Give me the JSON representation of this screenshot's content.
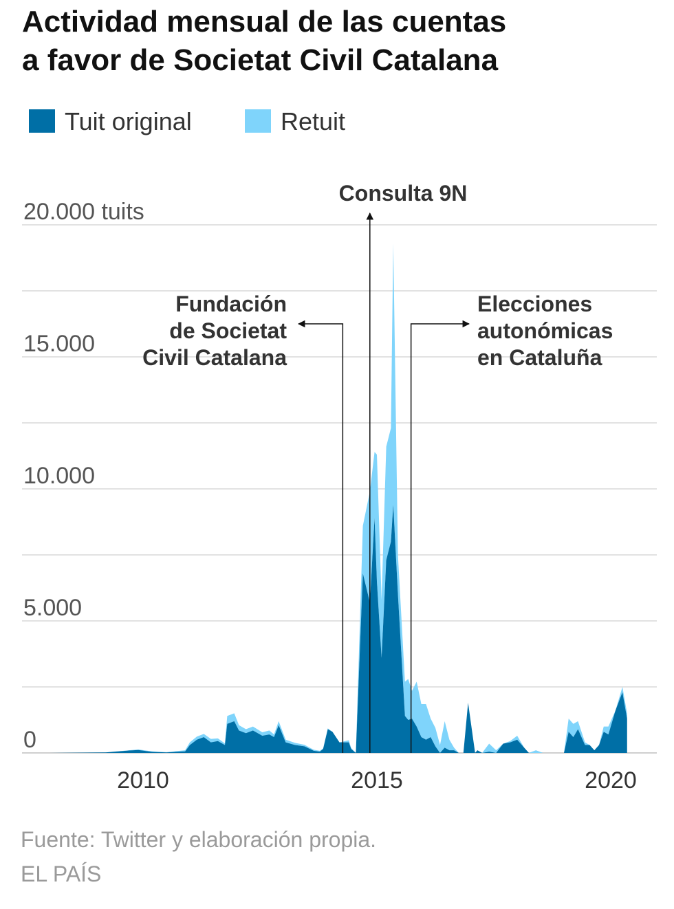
{
  "title": "Actividad mensual de las cuentas\na favor de Societat Civil Catalana",
  "legend": [
    {
      "label": "Tuit original",
      "color": "#006fa6"
    },
    {
      "label": "Retuit",
      "color": "#7fd4fb"
    }
  ],
  "source": "Fuente: Twitter y elaboración propia.",
  "credit": "EL PAÍS",
  "chart_data": {
    "type": "area",
    "stacked": true,
    "ylim": [
      0,
      20000
    ],
    "xlim": [
      2008.0,
      2021.0
    ],
    "grid": true,
    "y_ticks": [
      {
        "value": 0,
        "label": "0"
      },
      {
        "value": 5000,
        "label": "5.000"
      },
      {
        "value": 10000,
        "label": "10.000"
      },
      {
        "value": 15000,
        "label": "15.000"
      },
      {
        "value": 20000,
        "label": "20.000 tuits"
      }
    ],
    "x_ticks": [
      {
        "value": 2010,
        "label": "2010"
      },
      {
        "value": 2015,
        "label": "2015"
      },
      {
        "value": 2020,
        "label": "2020"
      }
    ],
    "annotations": [
      {
        "text": "Consulta 9N",
        "x": 2014.85
      },
      {
        "text": "Fundación\nde Societat\nCivil Catalana",
        "x": 2014.27
      },
      {
        "text": "Elecciones\nautonómicas\nen Cataluña",
        "x": 2015.73
      }
    ],
    "x": [
      2008.0,
      2009.2,
      2009.7,
      2009.9,
      2010.2,
      2010.5,
      2010.9,
      2011.0,
      2011.15,
      2011.3,
      2011.45,
      2011.6,
      2011.75,
      2011.8,
      2011.95,
      2012.05,
      2012.2,
      2012.35,
      2012.55,
      2012.7,
      2012.8,
      2012.9,
      2013.05,
      2013.25,
      2013.45,
      2013.65,
      2013.78,
      2013.85,
      2013.95,
      2014.05,
      2014.2,
      2014.4,
      2014.45,
      2014.55,
      2014.7,
      2014.85,
      2014.95,
      2015.0,
      2015.1,
      2015.2,
      2015.3,
      2015.35,
      2015.45,
      2015.6,
      2015.67,
      2015.75,
      2015.85,
      2015.95,
      2016.05,
      2016.15,
      2016.25,
      2016.35,
      2016.45,
      2016.55,
      2016.65,
      2016.75,
      2016.85,
      2016.95,
      2017.1,
      2017.15,
      2017.25,
      2017.4,
      2017.55,
      2017.7,
      2017.85,
      2018.0,
      2018.15,
      2018.25,
      2018.4,
      2018.55,
      2018.7,
      2018.85,
      2019.0,
      2019.1,
      2019.2,
      2019.3,
      2019.45,
      2019.55,
      2019.65,
      2019.75,
      2019.85,
      2019.95,
      2020.1,
      2020.25,
      2020.35
    ],
    "series": [
      {
        "name": "Tuit original",
        "values": [
          0,
          20,
          90,
          110,
          40,
          20,
          60,
          300,
          500,
          600,
          400,
          450,
          300,
          1100,
          1200,
          850,
          750,
          850,
          650,
          700,
          600,
          1050,
          400,
          300,
          250,
          80,
          50,
          150,
          900,
          800,
          400,
          400,
          150,
          0,
          6800,
          5700,
          8900,
          6500,
          3600,
          7300,
          8000,
          9400,
          6000,
          1400,
          1250,
          1300,
          1000,
          600,
          500,
          600,
          250,
          0,
          200,
          100,
          100,
          0,
          0,
          1900,
          0,
          100,
          0,
          50,
          0,
          350,
          400,
          500,
          200,
          0,
          0,
          0,
          0,
          0,
          0,
          800,
          600,
          900,
          300,
          300,
          100,
          300,
          800,
          700,
          1600,
          2300,
          1300
        ]
      },
      {
        "name": "Retuit",
        "values": [
          0,
          0,
          10,
          20,
          20,
          10,
          40,
          100,
          120,
          120,
          130,
          100,
          60,
          300,
          300,
          200,
          150,
          150,
          130,
          150,
          100,
          150,
          100,
          80,
          60,
          40,
          30,
          20,
          30,
          0,
          0,
          80,
          40,
          0,
          1800,
          4200,
          2500,
          4800,
          2200,
          4300,
          4300,
          9900,
          1500,
          1300,
          1550,
          1050,
          1700,
          1250,
          1350,
          700,
          700,
          300,
          1000,
          400,
          100,
          0,
          0,
          0,
          0,
          0,
          0,
          300,
          100,
          0,
          50,
          150,
          0,
          0,
          100,
          0,
          0,
          0,
          0,
          500,
          500,
          300,
          100,
          0,
          0,
          0,
          200,
          300,
          0,
          200,
          200
        ]
      }
    ]
  }
}
